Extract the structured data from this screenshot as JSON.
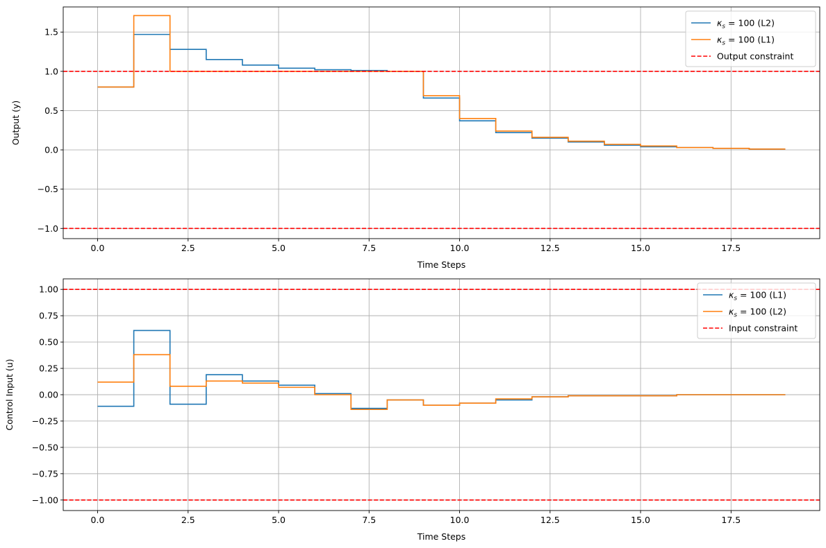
{
  "chart_data": [
    {
      "type": "line",
      "step": "post",
      "xlabel": "Time Steps",
      "ylabel": "Output (y)",
      "xlim": [
        -0.95,
        19.95
      ],
      "ylim": [
        -1.13,
        1.82
      ],
      "xticks": [
        0.0,
        2.5,
        5.0,
        7.5,
        10.0,
        12.5,
        15.0,
        17.5
      ],
      "xtick_labels": [
        "0.0",
        "2.5",
        "5.0",
        "7.5",
        "10.0",
        "12.5",
        "15.0",
        "17.5"
      ],
      "yticks": [
        -1.0,
        -0.5,
        0.0,
        0.5,
        1.0,
        1.5
      ],
      "ytick_labels": [
        "−1.0",
        "−0.5",
        "0.0",
        "0.5",
        "1.0",
        "1.5"
      ],
      "grid": true,
      "legend_position": "top-right",
      "x": [
        0,
        1,
        2,
        3,
        4,
        5,
        6,
        7,
        8,
        9,
        10,
        11,
        12,
        13,
        14,
        15,
        16,
        17,
        18,
        19
      ],
      "series": [
        {
          "kappa_label": "κ",
          "kappa_sub": "s",
          "suffix": " = 100 (L2)",
          "color": "#1f77b4",
          "values": [
            0.8,
            1.47,
            1.28,
            1.15,
            1.08,
            1.04,
            1.02,
            1.01,
            1.0,
            0.66,
            0.37,
            0.22,
            0.15,
            0.1,
            0.06,
            0.04,
            0.03,
            0.02,
            0.01,
            0.01
          ]
        },
        {
          "kappa_label": "κ",
          "kappa_sub": "s",
          "suffix": " = 100 (L1)",
          "color": "#ff7f0e",
          "values": [
            0.8,
            1.71,
            1.0,
            1.0,
            1.0,
            1.0,
            1.0,
            1.0,
            1.0,
            0.69,
            0.4,
            0.24,
            0.16,
            0.11,
            0.07,
            0.05,
            0.03,
            0.02,
            0.01,
            0.01
          ]
        }
      ],
      "constraint": {
        "label": "Output constraint",
        "color": "#ff0000",
        "values": [
          1.0,
          -1.0
        ]
      }
    },
    {
      "type": "line",
      "step": "post",
      "xlabel": "Time Steps",
      "ylabel": "Control Input (u)",
      "xlim": [
        -0.95,
        19.95
      ],
      "ylim": [
        -1.1,
        1.1
      ],
      "xticks": [
        0.0,
        2.5,
        5.0,
        7.5,
        10.0,
        12.5,
        15.0,
        17.5
      ],
      "xtick_labels": [
        "0.0",
        "2.5",
        "5.0",
        "7.5",
        "10.0",
        "12.5",
        "15.0",
        "17.5"
      ],
      "yticks": [
        -1.0,
        -0.75,
        -0.5,
        -0.25,
        0.0,
        0.25,
        0.5,
        0.75,
        1.0
      ],
      "ytick_labels": [
        "−1.00",
        "−0.75",
        "−0.50",
        "−0.25",
        "0.00",
        "0.25",
        "0.50",
        "0.75",
        "1.00"
      ],
      "grid": true,
      "legend_position": "top-right",
      "x": [
        0,
        1,
        2,
        3,
        4,
        5,
        6,
        7,
        8,
        9,
        10,
        11,
        12,
        13,
        14,
        15,
        16,
        17,
        18,
        19
      ],
      "series": [
        {
          "kappa_label": "κ",
          "kappa_sub": "s",
          "suffix": " = 100 (L1)",
          "color": "#1f77b4",
          "values": [
            -0.11,
            0.61,
            -0.09,
            0.19,
            0.13,
            0.09,
            0.01,
            -0.13,
            -0.05,
            -0.1,
            -0.08,
            -0.05,
            -0.02,
            -0.01,
            -0.01,
            -0.01,
            0.0,
            0.0,
            0.0,
            0.0
          ]
        },
        {
          "kappa_label": "κ",
          "kappa_sub": "s",
          "suffix": " = 100 (L2)",
          "color": "#ff7f0e",
          "values": [
            0.12,
            0.38,
            0.08,
            0.13,
            0.11,
            0.07,
            0.0,
            -0.14,
            -0.05,
            -0.1,
            -0.08,
            -0.04,
            -0.02,
            -0.01,
            -0.01,
            -0.01,
            0.0,
            0.0,
            0.0,
            0.0
          ]
        }
      ],
      "constraint": {
        "label": "Input constraint",
        "color": "#ff0000",
        "values": [
          1.0,
          -1.0
        ]
      }
    }
  ]
}
